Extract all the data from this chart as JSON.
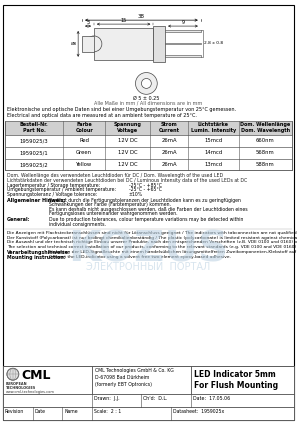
{
  "title": "LED Indicator 5mm\nFor Flush Mounting",
  "company_name": "CML",
  "company_full": "CML Technologies GmbH & Co. KG\nD-67098 Bad Dürkheim\n(formerly EBT Optronics)",
  "website": "www.cml-technologies.com",
  "drawn_by": "J.J.",
  "checked_by": "D.L.",
  "date": "17.05.06",
  "scale": "2 : 1",
  "datasheet_no": "1959025x",
  "table_headers": [
    "Bestell-Nr.\nPart No.",
    "Farbe\nColour",
    "Spannung\nVoltage",
    "Strom\nCurrent",
    "Lichtstärke\nLumin. Intensity",
    "Dom. Wellenlänge\nDom. Wavelength"
  ],
  "table_data": [
    [
      "1959025/3",
      "Red",
      "12V DC",
      "26mA",
      "15mcd",
      "660nm"
    ],
    [
      "1959025/1",
      "Green",
      "12V DC",
      "26mA",
      "14mcd",
      "568nm"
    ],
    [
      "1959025/2",
      "Yellow",
      "12V DC",
      "26mA",
      "13mcd",
      "588nm"
    ]
  ],
  "dim_note_de": "Elektronische und optische Daten sind bei einer Umgebungstemperatur von 25°C gemessen.",
  "dim_note_en": "Electrical and optical data are measured at an ambient temperature of 25°C.",
  "dim_label": "Alle Maße in mm / All dimensions are in mm",
  "footnote1a": "Dom. Wellenlänge des verwendeten Leuchtdioden für DC / Dom. Wavelength of the used LED",
  "footnote1b": "Lichtstärkdaten der verwendeten Leuchtdioden bei DC / Luminous Intensity data of the used LEDs at DC",
  "footnote2a": "Lagertemperatur / Storage temperature:",
  "footnote2av": "-25°C - +85°C",
  "footnote2b": "Umgebungstemperatur / Ambient temperature:",
  "footnote2bv": "-25°C - +65°C",
  "footnote2c": "Spannungstoleranz / Voltage tolerance:",
  "footnote2cv": "±10%",
  "hint_de": "Allgemeiner Hinweis:",
  "hint_text": "Bedingt durch die Fertigungstoleranzen der Leuchtdioden kann es zu geringfügigen\nSchwankungen der Farbe (Farbtemperatur) kommen.\nEs kann deshalb nicht ausgeschlossen werden, daß die Farben der Leuchtdioden eines\nFertigungsloses untereinander wahrgenommen werden.",
  "general_de": "General:",
  "general_text": "Due to production tolerances, colour temperature variations may be detected within\nindividual consignments.",
  "line1": "Die Anzeigen mit Flachsteckeranschlüssen sind nicht für Lötanschluss geeignet / The indicators with tabconnection are not qualified for soldering.",
  "line2": "Der Kunststoff (Polycarbonat) ist nur bedingt chemikalienbeständig / The plastic (polycarbonate) is limited resistant against chemicals.",
  "line3a": "Die Auswahl und der technisch richtige Einbau unserer Produkte, nach den entsprechenden Vorschriften (z.B. VDE 0100 und 0160) oblegen dem Anwender /",
  "line3b": "The selection and technical correct installation of our products, conforming to the relevant standards (e.g. VDE 0100 and VDE 0160) is incumbent on the user.",
  "mounting_de": "Verarbeitungshinweise:",
  "mounting_text": "Einbetten der LED-Signalleuchte mit einem handelsüblichen lösungsmittelfreien Zweikomponenten-Klebstoff auf Epoxidharz-Basis.",
  "mounting_en_de": "Mounting instruction:",
  "mounting_en_text": "Cement the LED-indicator using a solvent free two element epoxy-based adhesive.",
  "bg_color": "#ffffff",
  "border_color": "#000000",
  "watermark_color": "#b8cfe0"
}
